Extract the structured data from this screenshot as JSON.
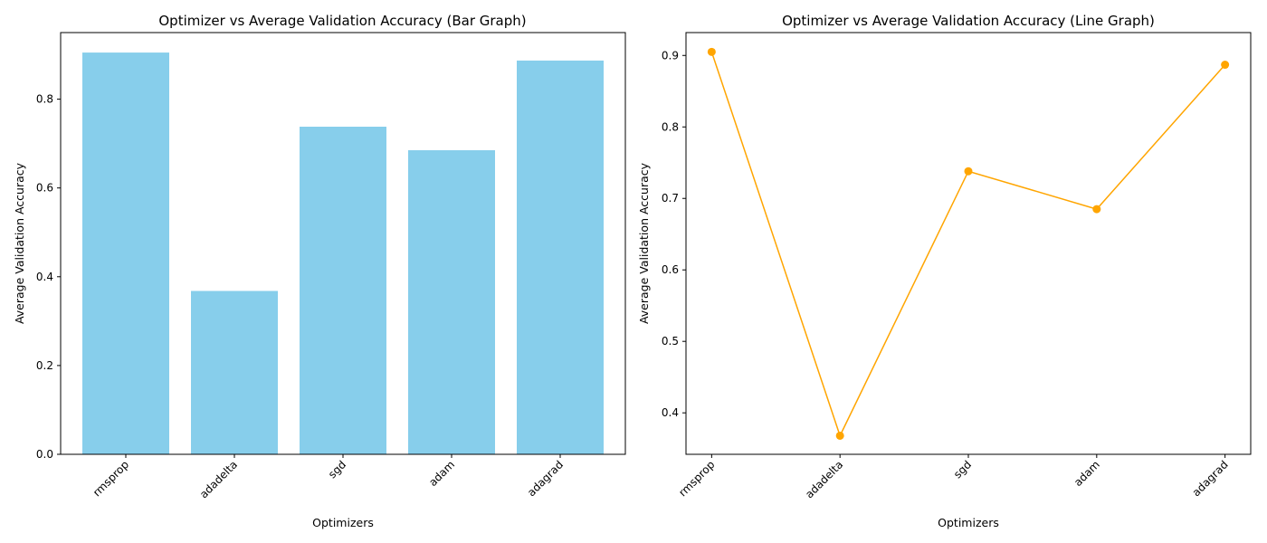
{
  "chart_data": [
    {
      "type": "bar",
      "title": "Optimizer vs Average Validation Accuracy (Bar Graph)",
      "xlabel": "Optimizers",
      "ylabel": "Average Validation Accuracy",
      "categories": [
        "rmsprop",
        "adadelta",
        "sgd",
        "adam",
        "adagrad"
      ],
      "values": [
        0.905,
        0.368,
        0.738,
        0.685,
        0.887
      ],
      "ylim": [
        0,
        0.95
      ],
      "yticks": [
        "0.0",
        "0.2",
        "0.4",
        "0.6",
        "0.8"
      ],
      "color": "#87ceeb",
      "grid": false
    },
    {
      "type": "line",
      "title": "Optimizer vs Average Validation Accuracy (Line Graph)",
      "xlabel": "Optimizers",
      "ylabel": "Average Validation Accuracy",
      "categories": [
        "rmsprop",
        "adadelta",
        "sgd",
        "adam",
        "adagrad"
      ],
      "values": [
        0.905,
        0.368,
        0.738,
        0.685,
        0.887
      ],
      "ylim": [
        0.342,
        0.932
      ],
      "yticks": [
        "0.4",
        "0.5",
        "0.6",
        "0.7",
        "0.8",
        "0.9"
      ],
      "color": "#ffa500",
      "marker": "circle",
      "grid": false
    }
  ]
}
